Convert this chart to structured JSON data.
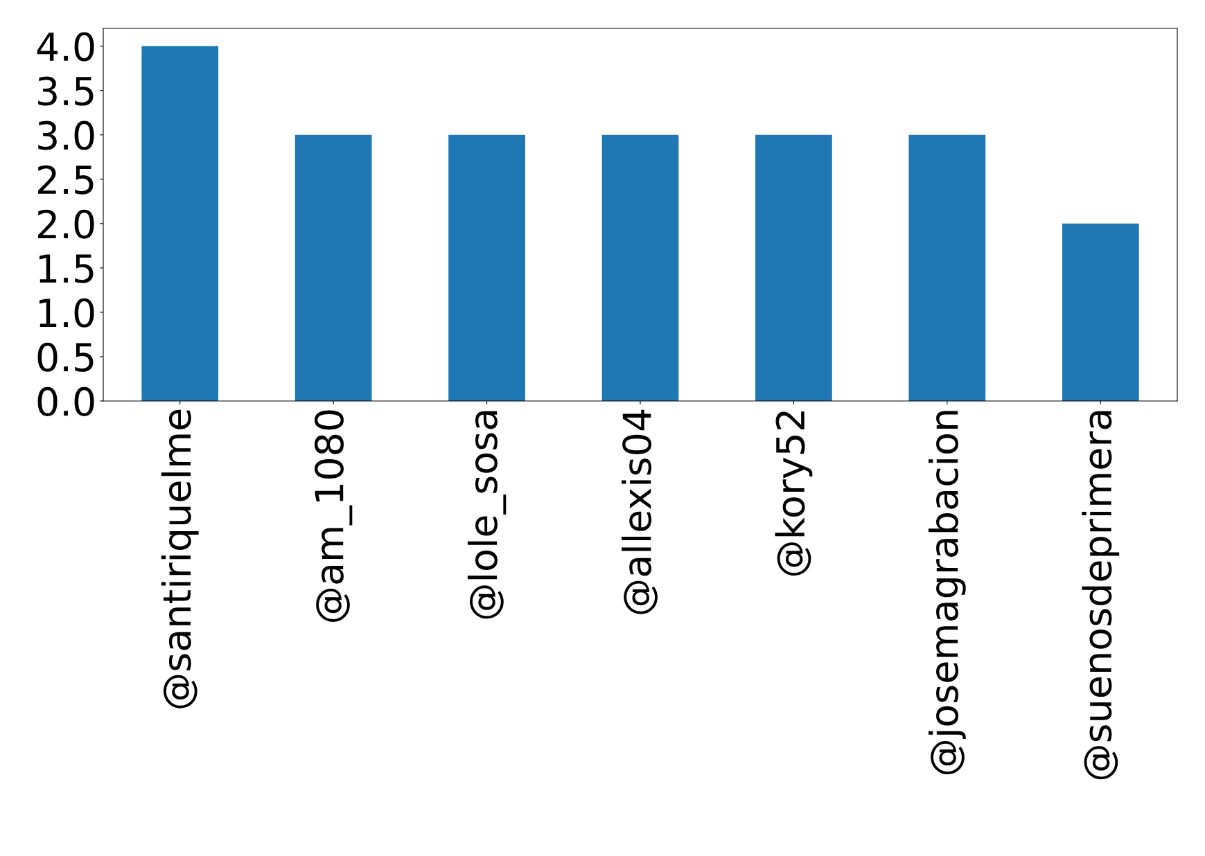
{
  "chart_data": {
    "type": "bar",
    "categories": [
      "@santiriquelme",
      "@am_1080",
      "@lole_sosa",
      "@allexis04",
      "@kory52",
      "@josemagrabacion",
      "@suenosdeprimera"
    ],
    "values": [
      4,
      3,
      3,
      3,
      3,
      3,
      2
    ],
    "color": "#1f77b4",
    "ylim": [
      0,
      4.2
    ],
    "yticks": [
      {
        "value": 0,
        "label": "0.0"
      },
      {
        "value": 0.5,
        "label": "0.5"
      },
      {
        "value": 1,
        "label": "1.0"
      },
      {
        "value": 1.5,
        "label": "1.5"
      },
      {
        "value": 2,
        "label": "2.0"
      },
      {
        "value": 2.5,
        "label": "2.5"
      },
      {
        "value": 3,
        "label": "3.0"
      },
      {
        "value": 3.5,
        "label": "3.5"
      },
      {
        "value": 4,
        "label": "4.0"
      }
    ],
    "grid": false,
    "legend": false
  }
}
